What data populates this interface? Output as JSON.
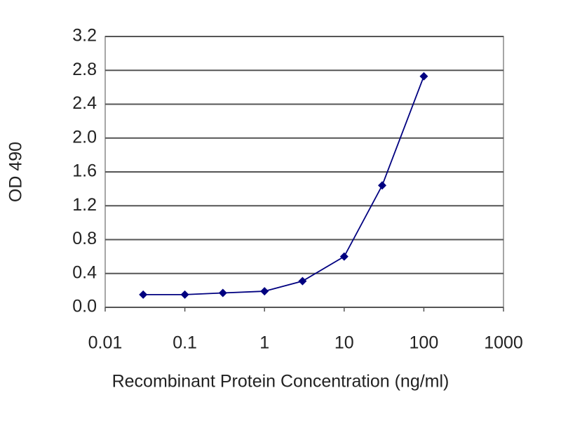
{
  "chart_data": {
    "type": "line",
    "x_label": "Recombinant Protein Concentration (ng/ml)",
    "y_label": "OD 490",
    "x": [
      0.03,
      0.1,
      0.3,
      1,
      3,
      10,
      30,
      100
    ],
    "values": [
      0.15,
      0.15,
      0.17,
      0.19,
      0.31,
      0.6,
      1.44,
      2.73
    ],
    "color": "#000080",
    "xscale": "log",
    "xlim": [
      0.01,
      1000
    ],
    "xticks": [
      0.01,
      0.1,
      1,
      10,
      100,
      1000
    ],
    "ylim": [
      0,
      3.2
    ],
    "yticks": [
      {
        "value": 0,
        "label": "0.0"
      },
      0.4,
      0.8,
      1.2,
      1.6,
      {
        "value": 2,
        "label": "2.0"
      },
      2.4,
      2.8,
      3.2
    ],
    "grid": true
  }
}
